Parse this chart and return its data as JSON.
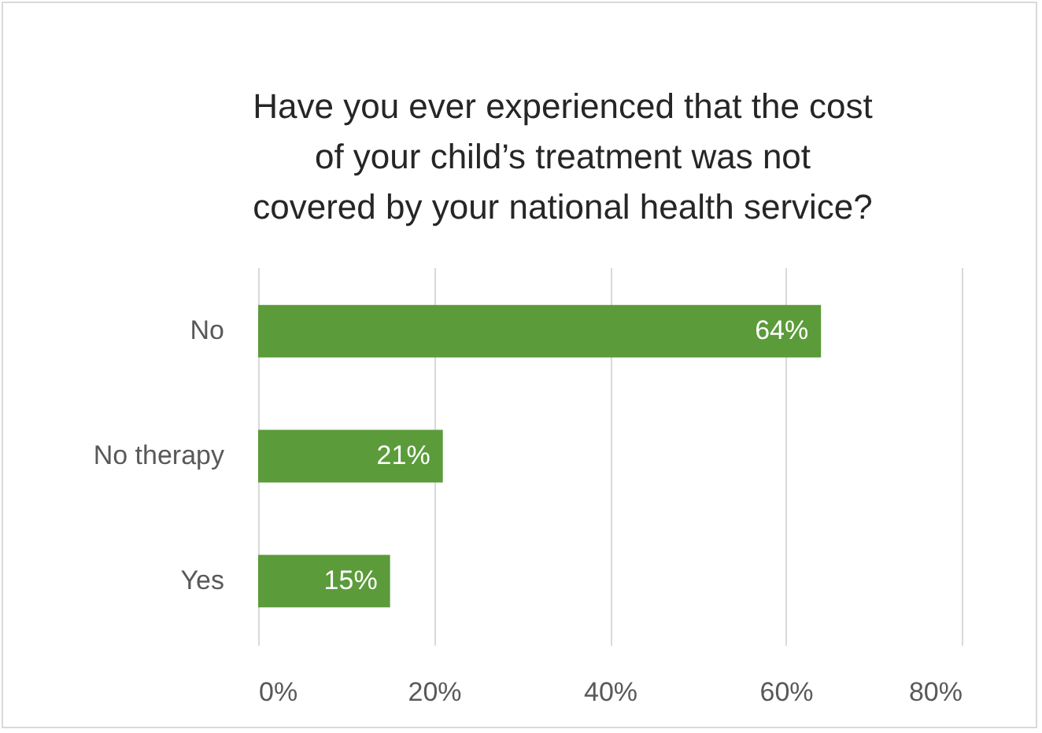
{
  "chart_data": {
    "type": "bar",
    "orientation": "horizontal",
    "title": "Have you ever experienced that the cost of your child’s treatment was not covered by your national health service?",
    "categories": [
      "No",
      "No therapy",
      "Yes"
    ],
    "values": [
      64,
      21,
      15
    ],
    "value_labels": [
      "64%",
      "21%",
      "15%"
    ],
    "color": "#5b9b3a",
    "xlim": [
      0,
      80
    ],
    "xticks": [
      {
        "value": 0,
        "label": "0%"
      },
      {
        "value": 20,
        "label": "20%"
      },
      {
        "value": 40,
        "label": "40%"
      },
      {
        "value": 60,
        "label": "60%"
      },
      {
        "value": 80,
        "label": "80%"
      }
    ],
    "grid": "x"
  }
}
